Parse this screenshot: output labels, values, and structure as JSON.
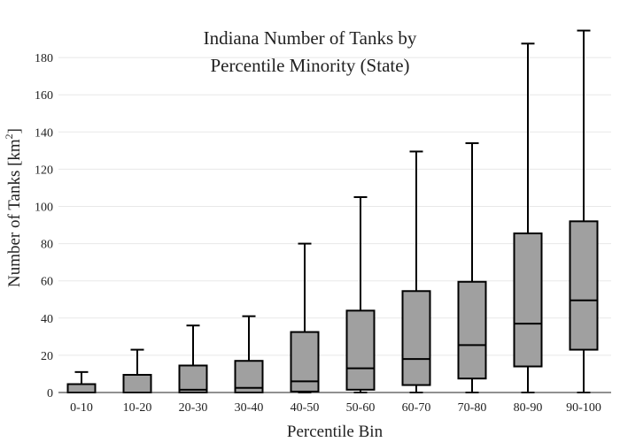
{
  "chart_data": {
    "type": "box",
    "title_line1": "Indiana Number of Tanks by",
    "title_line2": "Percentile Minority (State)",
    "xlabel": "Percentile Bin",
    "ylabel_main": "Number of Tanks  [km",
    "ylabel_sup": "2",
    "ylabel_end": "]",
    "ylim": [
      0,
      195
    ],
    "yticks": [
      0,
      20,
      40,
      60,
      80,
      100,
      120,
      140,
      160,
      180
    ],
    "grid": true,
    "categories": [
      "0-10",
      "10-20",
      "20-30",
      "30-40",
      "40-50",
      "50-60",
      "60-70",
      "70-80",
      "80-90",
      "90-100"
    ],
    "boxes": [
      {
        "min": 0,
        "q1": 0,
        "median": 0,
        "q3": 4.5,
        "max": 11
      },
      {
        "min": 0,
        "q1": 0,
        "median": 0,
        "q3": 9.5,
        "max": 23
      },
      {
        "min": 0,
        "q1": 0,
        "median": 1.5,
        "q3": 14.5,
        "max": 36
      },
      {
        "min": 0,
        "q1": 0,
        "median": 2.5,
        "q3": 17,
        "max": 41
      },
      {
        "min": 0,
        "q1": 0.5,
        "median": 6,
        "q3": 32.5,
        "max": 80
      },
      {
        "min": 0,
        "q1": 1.5,
        "median": 13,
        "q3": 44,
        "max": 105
      },
      {
        "min": 0,
        "q1": 4,
        "median": 18,
        "q3": 54.5,
        "max": 129.5
      },
      {
        "min": 0,
        "q1": 7.5,
        "median": 25.5,
        "q3": 59.5,
        "max": 134
      },
      {
        "min": 0,
        "q1": 14,
        "median": 37,
        "q3": 85.5,
        "max": 187.5
      },
      {
        "min": 0,
        "q1": 23,
        "median": 49.5,
        "q3": 92,
        "max": 194.5
      }
    ],
    "colors": {
      "box_fill": "#a0a0a0",
      "box_stroke": "#000000",
      "grid": "#e8e8e8"
    }
  }
}
